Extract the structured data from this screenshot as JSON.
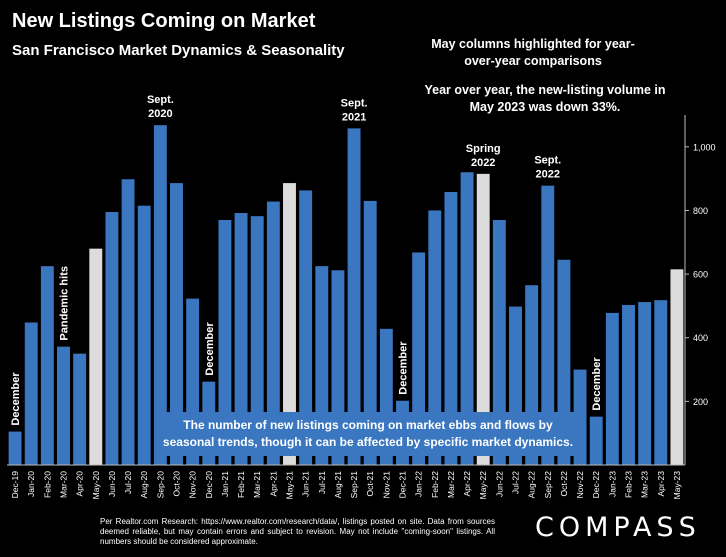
{
  "title": "New Listings Coming on Market",
  "subtitle": "San Francisco Market Dynamics & Seasonality",
  "note_may": "May columns highlighted for year-over-year comparisons",
  "note_yoy": "Year over year, the new-listing volume in May 2023 was down 33%.",
  "callout": "The number of new listings coming on market ebbs and flows by seasonal trends, though it can be affected by specific market dynamics.",
  "footer": "Per Realtor.com Research: https://www.realtor.com/research/data/, listings posted on site. Data from sources deemed reliable, but may contain errors and subject to revision. May not include \"coming-soon\" listings. All numbers should be considered approximate.",
  "logo": "COMPASS",
  "colors": {
    "bar": "#3a77c0",
    "highlight": "#dcdcdc",
    "text": "#ffffff",
    "background": "#000000"
  },
  "chart_data": {
    "type": "bar",
    "title": "New Listings Coming on Market",
    "subtitle": "San Francisco Market Dynamics & Seasonality",
    "ylim": [
      0,
      1100
    ],
    "yticks": [
      200,
      400,
      600,
      800,
      1000
    ],
    "ytick_labels": [
      "200",
      "400",
      "600",
      "800",
      "1,000"
    ],
    "yaxis_position": "right",
    "grid": false,
    "categories": [
      "Dec-19",
      "Jan-20",
      "Feb-20",
      "Mar-20",
      "Apr-20",
      "May-20",
      "Jun-20",
      "Jul-20",
      "Aug-20",
      "Sep-20",
      "Oct-20",
      "Nov-20",
      "Dec-20",
      "Jan-21",
      "Feb-21",
      "Mar-21",
      "Apr-21",
      "May-21",
      "Jun-21",
      "Jul-21",
      "Aug-21",
      "Sep-21",
      "Oct-21",
      "Nov-21",
      "Dec-21",
      "Jan-22",
      "Feb-22",
      "Mar-22",
      "Apr-22",
      "May-22",
      "Jun-22",
      "Jul-22",
      "Aug-22",
      "Sep-22",
      "Oct-22",
      "Nov-22",
      "Dec-22",
      "Jan-23",
      "Feb-23",
      "Mar-23",
      "Apr-23",
      "May-23"
    ],
    "values": [
      105,
      448,
      625,
      372,
      350,
      680,
      795,
      898,
      815,
      1068,
      886,
      523,
      262,
      770,
      792,
      782,
      828,
      886,
      863,
      625,
      612,
      1058,
      830,
      428,
      202,
      668,
      800,
      858,
      920,
      915,
      770,
      498,
      565,
      878,
      645,
      300,
      152,
      478,
      503,
      512,
      518,
      615
    ],
    "highlighted": [
      "May-20",
      "May-21",
      "May-22",
      "May-23"
    ],
    "annotations": [
      {
        "text": "December",
        "at": "Dec-19",
        "orient": "vertical"
      },
      {
        "text": "Pandemic hits",
        "at": "Mar-20",
        "orient": "vertical"
      },
      {
        "text": "Sept. 2020",
        "at": "Sep-20",
        "orient": "horizontal"
      },
      {
        "text": "December",
        "at": "Dec-20",
        "orient": "vertical"
      },
      {
        "text": "Sept. 2021",
        "at": "Sep-21",
        "orient": "horizontal"
      },
      {
        "text": "December",
        "at": "Dec-21",
        "orient": "vertical"
      },
      {
        "text": "Spring 2022",
        "at": "May-22",
        "orient": "horizontal"
      },
      {
        "text": "Sept. 2022",
        "at": "Sep-22",
        "orient": "horizontal"
      },
      {
        "text": "December",
        "at": "Dec-22",
        "orient": "vertical"
      }
    ]
  }
}
